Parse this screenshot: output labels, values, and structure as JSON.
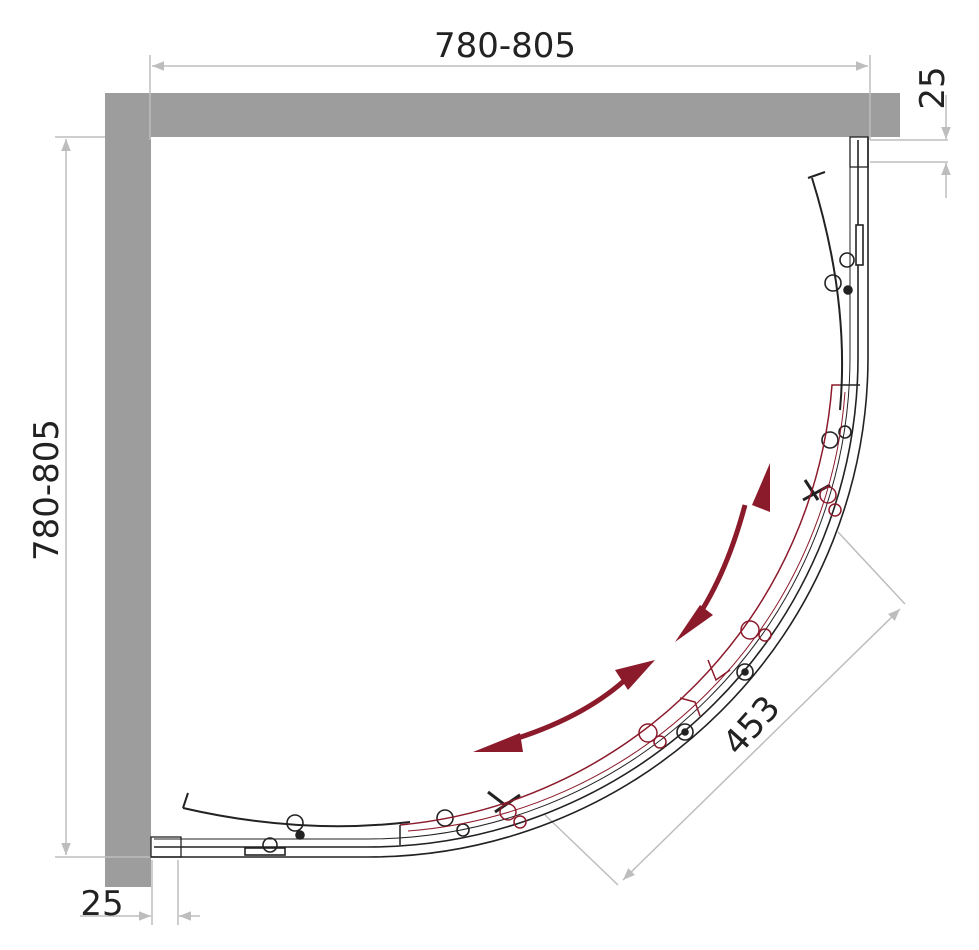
{
  "dimensions": {
    "width": "780-805",
    "depth": "780-805",
    "wall_offset_top": "25",
    "wall_offset_bottom": "25",
    "door_opening": "453"
  },
  "colors": {
    "wall": "#9d9d9d",
    "profile": "#222222",
    "moving_door": "#8b1a2b",
    "dimension_line": "#bdbdbd"
  }
}
